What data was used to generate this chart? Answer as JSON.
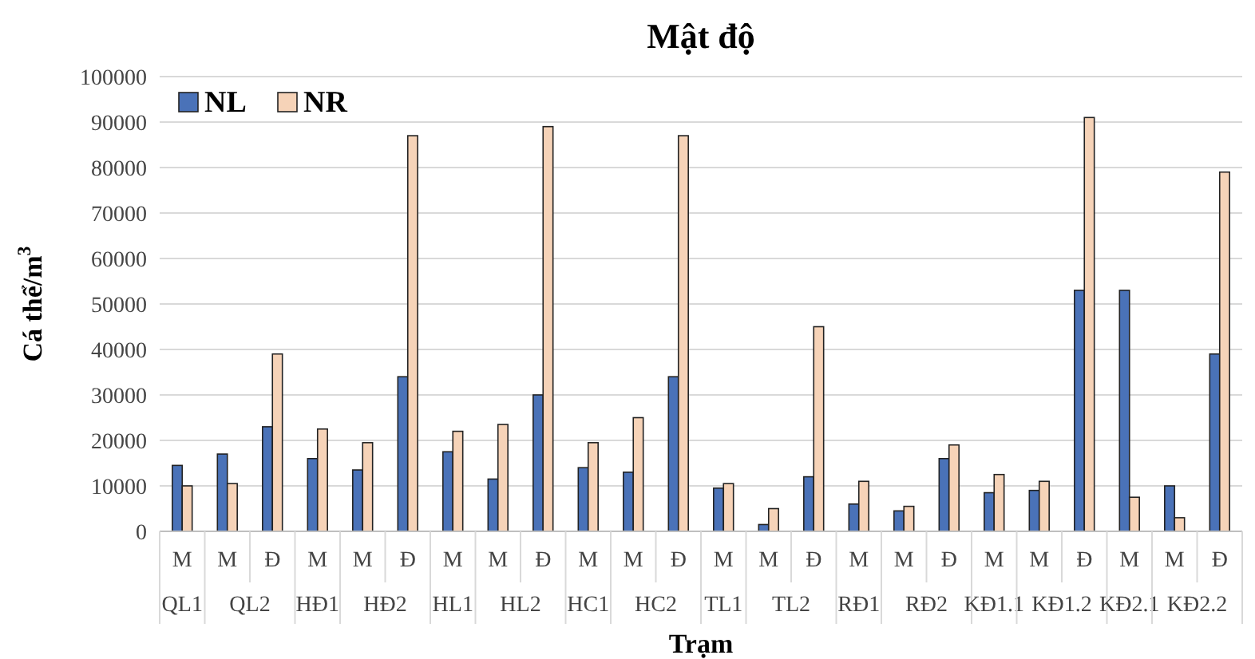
{
  "chart_data": {
    "type": "bar",
    "title": "Mật độ",
    "xlabel": "Trạm",
    "ylabel": "Cá thể/m$^{3}$",
    "categories": [
      "M",
      "M",
      "Đ",
      "M",
      "M",
      "Đ",
      "M",
      "M",
      "Đ",
      "M",
      "M",
      "Đ",
      "M",
      "M",
      "Đ",
      "M",
      "M",
      "Đ",
      "M",
      "M",
      "Đ",
      "M",
      "M",
      "Đ"
    ],
    "annotations": [
      "QL1",
      "QL2",
      "HĐ1",
      "HĐ2",
      "HL1",
      "HL2",
      "HC1",
      "HC2",
      "TL1",
      "TL2",
      "RĐ1",
      "RĐ2",
      "KĐ1.1",
      "KĐ1.2",
      "KĐ2.1",
      "KĐ2.2"
    ],
    "series": [
      {
        "name": "NL",
        "color": "#4a72b8",
        "values": [
          14500,
          17000,
          23000,
          16000,
          13500,
          34000,
          17500,
          11500,
          30000,
          14000,
          13000,
          34000,
          9500,
          1500,
          12000,
          6000,
          4500,
          16000,
          8500,
          9000,
          53000,
          53000,
          10000,
          39000
        ]
      },
      {
        "name": "NR",
        "color": "#f6d3b8",
        "values": [
          10000,
          10500,
          39000,
          22500,
          19500,
          87000,
          22000,
          23500,
          89000,
          19500,
          25000,
          87000,
          10500,
          5000,
          45000,
          11000,
          5500,
          19000,
          12500,
          11000,
          91000,
          7500,
          3000,
          79000
        ]
      }
    ],
    "ylim": [
      0,
      100000
    ],
    "yticks": [
      0,
      10000,
      20000,
      30000,
      40000,
      50000,
      60000,
      70000,
      80000,
      90000,
      100000
    ],
    "grid": "y",
    "legend": "top left"
  }
}
